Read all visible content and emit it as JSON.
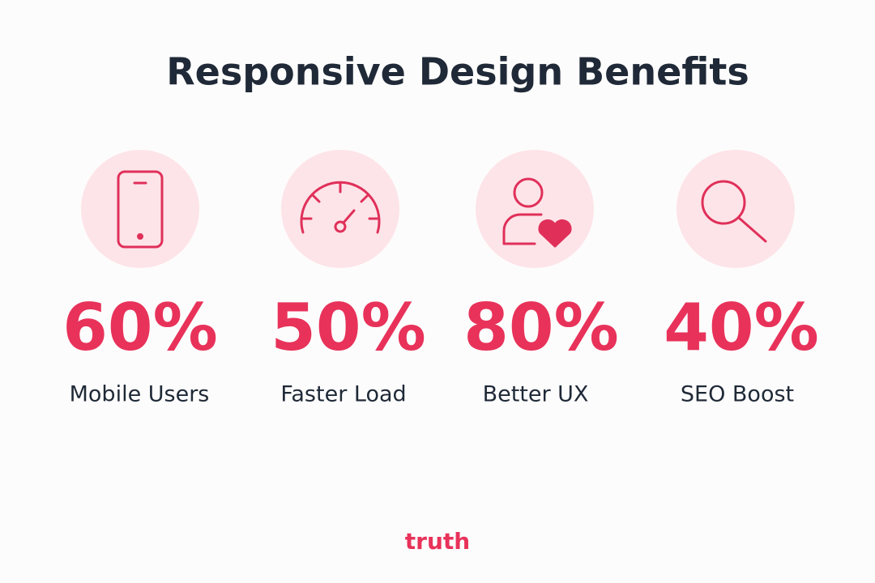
{
  "title": "Responsive Design Benefits",
  "stats": [
    {
      "value": "60%",
      "label": "Mobile Users"
    },
    {
      "value": "50%",
      "label": "Faster Load"
    },
    {
      "value": "80%",
      "label": "Better UX"
    },
    {
      "value": "40%",
      "label": "SEO Boost"
    }
  ],
  "brand": "truth"
}
